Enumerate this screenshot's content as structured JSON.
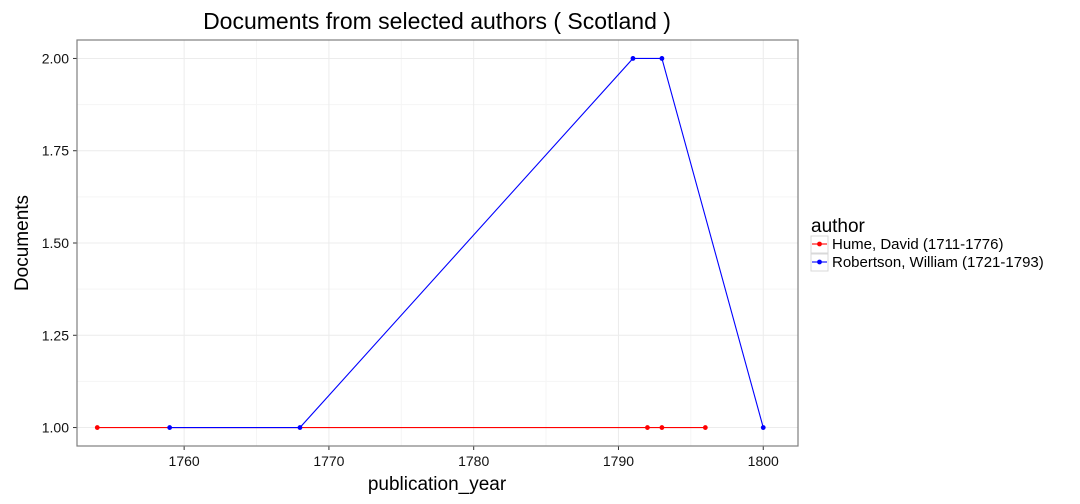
{
  "chart_data": {
    "type": "line",
    "title": "Documents from selected authors ( Scotland )",
    "xlabel": "publication_year",
    "ylabel": "Documents",
    "xlim": [
      1752.6,
      1802.4
    ],
    "ylim": [
      0.95,
      2.05
    ],
    "x_ticks": [
      1760,
      1770,
      1780,
      1790,
      1800
    ],
    "y_ticks": [
      1.0,
      1.25,
      1.5,
      1.75,
      2.0
    ],
    "y_tick_labels": [
      "1.00",
      "1.25",
      "1.50",
      "1.75",
      "2.00"
    ],
    "grid": true,
    "legend": {
      "title": "author",
      "placement": "right"
    },
    "series": [
      {
        "name": "Hume, David (1711-1776)",
        "color": "#ff0000",
        "x": [
          1754,
          1792,
          1793,
          1796
        ],
        "y": [
          1,
          1,
          1,
          1
        ]
      },
      {
        "name": "Robertson, William (1721-1793)",
        "color": "#0000ff",
        "x": [
          1759,
          1768,
          1791,
          1793,
          1800
        ],
        "y": [
          1,
          1,
          2,
          2,
          1
        ]
      }
    ]
  }
}
